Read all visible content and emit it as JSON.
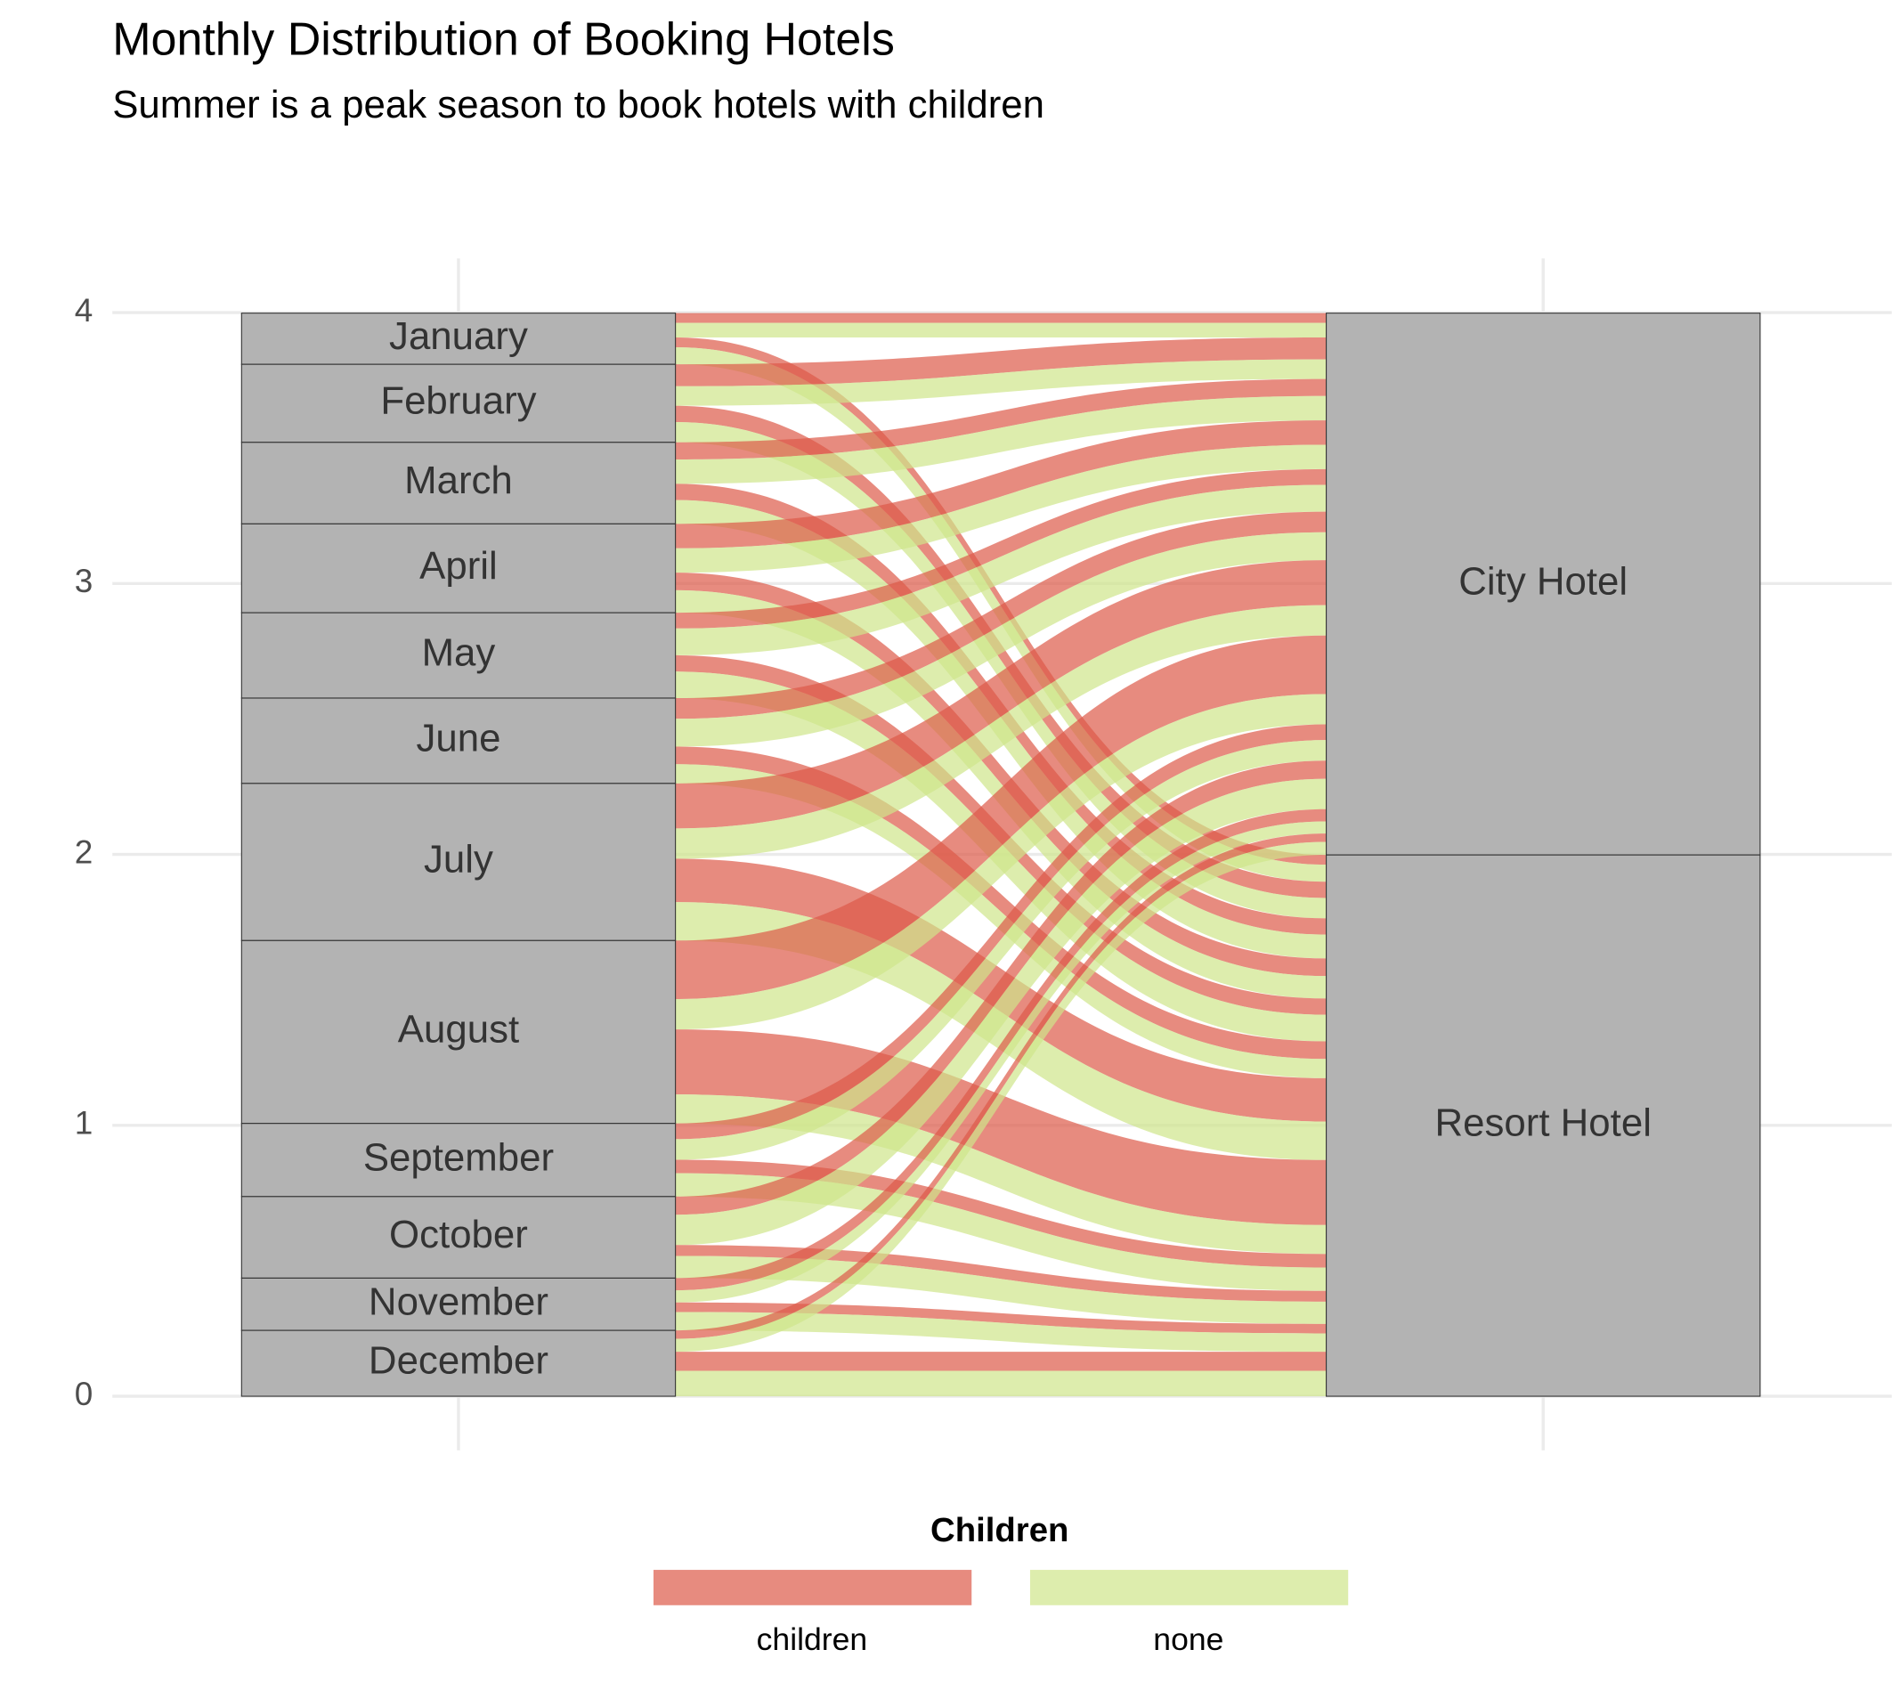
{
  "chart_data": {
    "type": "alluvial",
    "title": "Monthly Distribution of Booking Hotels",
    "subtitle": "Summer is a peak season to book hotels with children",
    "axes": [
      {
        "strata": [
          "January",
          "February",
          "March",
          "April",
          "May",
          "June",
          "July",
          "August",
          "September",
          "October",
          "November",
          "December"
        ]
      },
      {
        "strata": [
          "City Hotel",
          "Resort Hotel"
        ]
      }
    ],
    "legend_title": "Children",
    "series": [
      {
        "name": "children",
        "color": "#dd5a48",
        "values": [
          [
            0.036,
            0.081,
            0.063,
            0.09,
            0.058,
            0.076,
            0.166,
            0.216,
            0.058,
            0.067,
            0.045,
            0.031
          ],
          [
            0.036,
            0.06,
            0.06,
            0.065,
            0.06,
            0.065,
            0.16,
            0.24,
            0.05,
            0.04,
            0.035,
            0.07
          ]
        ]
      },
      {
        "name": "none",
        "color": "#cfe58a",
        "values": [
          [
            0.054,
            0.072,
            0.09,
            0.09,
            0.099,
            0.103,
            0.112,
            0.112,
            0.076,
            0.112,
            0.045,
            0.048
          ],
          [
            0.063,
            0.075,
            0.088,
            0.083,
            0.098,
            0.071,
            0.142,
            0.107,
            0.086,
            0.082,
            0.068,
            0.094
          ]
        ]
      }
    ],
    "ylim": [
      -0.2,
      4.2
    ],
    "yticks": [
      0,
      1,
      2,
      3,
      4
    ],
    "grid": true
  }
}
